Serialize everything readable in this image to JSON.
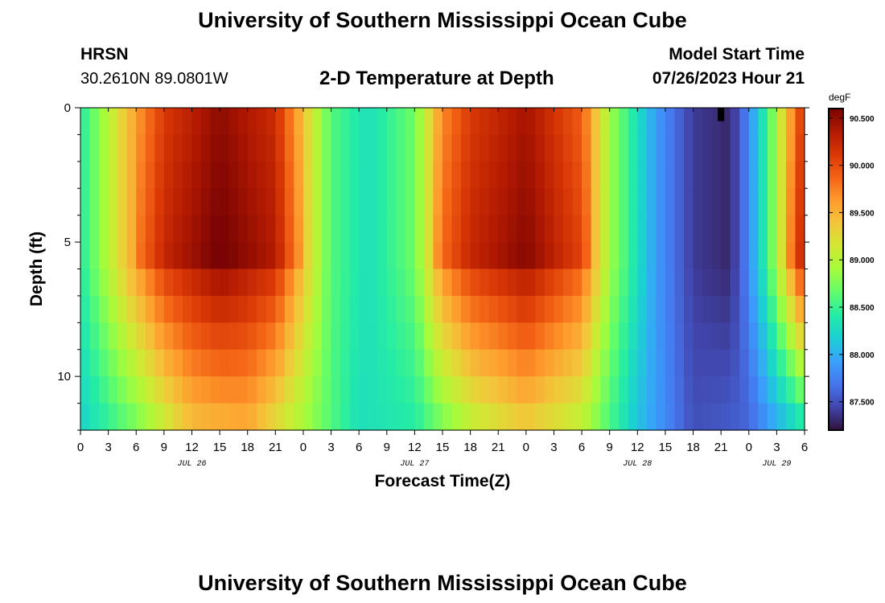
{
  "header": {
    "title": "University of Southern Mississippi Ocean Cube",
    "station": "HRSN",
    "location": "30.2610N  89.0801W",
    "subtitle": "2-D Temperature at Depth",
    "model_label": "Model Start Time",
    "model_time": "07/26/2023 Hour 21"
  },
  "footer": {
    "title": "University of Southern Mississippi Ocean Cube"
  },
  "colors": {
    "colormap": [
      "#30123b",
      "#4145ab",
      "#4675ed",
      "#39a2fc",
      "#1bcfd4",
      "#24eca6",
      "#61fc6c",
      "#a4fc3b",
      "#d1e834",
      "#f3c63a",
      "#fe9b2d",
      "#f36315",
      "#d93806",
      "#b11901",
      "#7a0403"
    ],
    "mask": "#000000"
  },
  "chart_data": {
    "type": "heatmap",
    "title": "2-D Temperature at Depth",
    "xlabel": "Forecast Time(Z)",
    "ylabel": "Depth (ft)",
    "x_unit": "hours since JUL 26 00Z",
    "xlim": [
      0,
      78
    ],
    "ylim": [
      0,
      12
    ],
    "y_inverted": true,
    "y_ticks": [
      0,
      5,
      10
    ],
    "y_tick_labels": [
      "0",
      "5",
      "10"
    ],
    "x_ticks": [
      0,
      3,
      6,
      9,
      12,
      15,
      18,
      21,
      24,
      27,
      30,
      33,
      36,
      39,
      42,
      45,
      48,
      51,
      54,
      57,
      60,
      63,
      66,
      69,
      72,
      75,
      78
    ],
    "x_tick_labels": [
      "0",
      "3",
      "6",
      "9",
      "12",
      "15",
      "18",
      "21",
      "0",
      "3",
      "6",
      "9",
      "12",
      "15",
      "18",
      "21",
      "0",
      "3",
      "6",
      "9",
      "12",
      "15",
      "18",
      "21",
      "0",
      "3",
      "6"
    ],
    "date_labels": [
      {
        "x": 12,
        "label": "JUL 26"
      },
      {
        "x": 36,
        "label": "JUL 27"
      },
      {
        "x": 60,
        "label": "JUL 28"
      },
      {
        "x": 75,
        "label": "JUL 29"
      }
    ],
    "time_step_hours": 1,
    "depth_levels": 12,
    "colorbar": {
      "unit": "degF",
      "range": [
        87.2,
        90.6
      ],
      "ticks": [
        87.5,
        88.0,
        88.5,
        89.0,
        89.5,
        90.0,
        90.5
      ],
      "tick_labels": [
        "87.500",
        "88.000",
        "88.500",
        "89.000",
        "89.500",
        "90.000",
        "90.500"
      ]
    },
    "surface_profile_degF": [
      {
        "x": 0,
        "v": 88.4
      },
      {
        "x": 6,
        "v": 89.6
      },
      {
        "x": 9,
        "v": 90.1
      },
      {
        "x": 15,
        "v": 90.5
      },
      {
        "x": 21,
        "v": 90.2
      },
      {
        "x": 24,
        "v": 89.4
      },
      {
        "x": 27,
        "v": 88.6
      },
      {
        "x": 31,
        "v": 88.3
      },
      {
        "x": 36,
        "v": 88.7
      },
      {
        "x": 39,
        "v": 89.7
      },
      {
        "x": 42,
        "v": 90.1
      },
      {
        "x": 48,
        "v": 90.4
      },
      {
        "x": 54,
        "v": 89.9
      },
      {
        "x": 57,
        "v": 88.9
      },
      {
        "x": 62,
        "v": 87.9
      },
      {
        "x": 66,
        "v": 87.4
      },
      {
        "x": 70,
        "v": 87.3
      },
      {
        "x": 72,
        "v": 87.8
      },
      {
        "x": 74,
        "v": 88.5
      },
      {
        "x": 76,
        "v": 89.4
      },
      {
        "x": 78,
        "v": 90.2
      }
    ],
    "deep_profile_degF": [
      {
        "x": 0,
        "v": 88.2
      },
      {
        "x": 6,
        "v": 88.7
      },
      {
        "x": 12,
        "v": 89.4
      },
      {
        "x": 18,
        "v": 89.5
      },
      {
        "x": 24,
        "v": 88.9
      },
      {
        "x": 30,
        "v": 88.3
      },
      {
        "x": 36,
        "v": 88.4
      },
      {
        "x": 42,
        "v": 89.0
      },
      {
        "x": 48,
        "v": 89.3
      },
      {
        "x": 54,
        "v": 89.0
      },
      {
        "x": 60,
        "v": 88.1
      },
      {
        "x": 66,
        "v": 87.5
      },
      {
        "x": 72,
        "v": 87.6
      },
      {
        "x": 78,
        "v": 88.3
      }
    ],
    "warm_core_depth_ft": 5.8,
    "missing_data_cells": [
      {
        "x": 69,
        "depth_range": [
          0,
          0.5
        ]
      }
    ]
  }
}
